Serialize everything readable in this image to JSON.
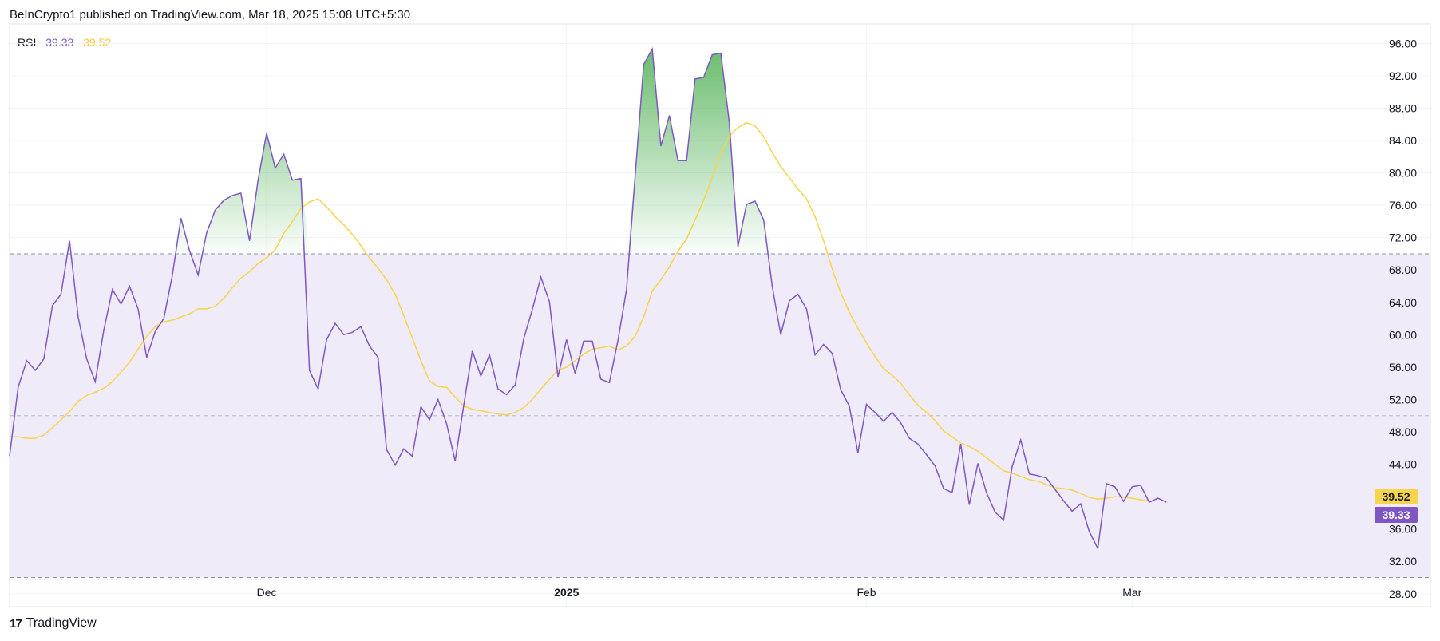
{
  "header": {
    "attribution": "BeInCrypto1 published on TradingView.com, Mar 18, 2025 15:08 UTC+5:30"
  },
  "legend": {
    "indicator": "RSI",
    "rsi_value": "39.33",
    "ma_value": "39.52"
  },
  "footer": {
    "brand": "TradingView",
    "logo_text": "17"
  },
  "colors": {
    "rsi_line": "#7e57c2",
    "ma_line": "#f7d44a",
    "band_fill": "#f0ebf8",
    "overbought_fill": "#4caf50",
    "ma_tag": "#f7d44a",
    "rsi_tag": "#7e57c2"
  },
  "chart_data": {
    "type": "line",
    "title": "",
    "ylim": [
      26.4,
      98.4
    ],
    "y_ticks": [
      "96.00",
      "92.00",
      "88.00",
      "84.00",
      "80.00",
      "76.00",
      "72.00",
      "68.00",
      "64.00",
      "60.00",
      "56.00",
      "52.00",
      "48.00",
      "44.00",
      "40.00",
      "36.00",
      "32.00",
      "28.00"
    ],
    "x_labels": [
      {
        "label": "Dec",
        "i": 30,
        "bold": false
      },
      {
        "label": "2025",
        "i": 65,
        "bold": true
      },
      {
        "label": "Feb",
        "i": 100,
        "bold": false
      },
      {
        "label": "Mar",
        "i": 131,
        "bold": false
      }
    ],
    "levels": {
      "upper": 70,
      "middle": 50,
      "lower": 30
    },
    "grid": true,
    "series": [
      {
        "name": "RSI",
        "values": [
          45,
          53.5,
          56.8,
          55.6,
          57,
          63.6,
          65,
          71.6,
          62.2,
          57,
          54.2,
          60.6,
          65.6,
          63.8,
          66,
          63.2,
          57.2,
          60.4,
          62,
          67.4,
          74.4,
          70.4,
          67.4,
          72.6,
          75.4,
          76.6,
          77.2,
          77.5,
          71.6,
          79.1,
          84.9,
          80.6,
          82.3,
          79.1,
          79.3,
          55.6,
          53.3,
          59.4,
          61.4,
          60,
          60.3,
          61,
          58.6,
          57.2,
          45.8,
          43.9,
          45.9,
          45,
          51.1,
          49.5,
          52,
          49,
          44.4,
          51.3,
          58,
          54.9,
          57.5,
          53.3,
          52.6,
          53.8,
          59.5,
          63.1,
          67.1,
          64.1,
          54.8,
          59.4,
          55.2,
          59.2,
          59.2,
          54.5,
          54.1,
          59.3,
          65.6,
          79.6,
          93.4,
          95.3,
          83.3,
          87.1,
          81.5,
          81.5,
          91.6,
          91.8,
          94.6,
          94.8,
          86.2,
          70.9,
          76.1,
          76.5,
          74.2,
          66,
          60,
          64.2,
          65,
          63.2,
          57.5,
          58.8,
          57.7,
          53.2,
          51.2,
          45.4,
          51.4,
          50.4,
          49.3,
          50.4,
          49.1,
          47.2,
          46.5,
          45.2,
          43.8,
          41,
          40.5,
          46.5,
          39,
          44.1,
          40.5,
          38.1,
          37.1,
          43.7,
          47,
          42.8,
          42.6,
          42.3,
          40.9,
          39.5,
          38.2,
          39.1,
          35.7,
          33.6,
          41.6,
          41.2,
          39.4,
          41.2,
          41.4,
          39.3,
          39.8,
          39.33
        ]
      },
      {
        "name": "RSI MA",
        "values": [
          47.4,
          47.4,
          47.2,
          47.2,
          47.6,
          48.5,
          49.5,
          50.5,
          51.8,
          52.5,
          52.9,
          53.4,
          54.2,
          55.4,
          56.6,
          58.2,
          59.8,
          61,
          61.6,
          61.8,
          62.2,
          62.6,
          63.2,
          63.2,
          63.5,
          64.5,
          65.8,
          67,
          67.8,
          68.8,
          69.5,
          70.5,
          72.5,
          74,
          75.6,
          76.4,
          76.8,
          75.8,
          74.6,
          73.6,
          72.4,
          71,
          69.5,
          68.2,
          66.8,
          65,
          62.4,
          59.6,
          56.8,
          54.3,
          53.6,
          53.5,
          52.3,
          51.2,
          50.8,
          50.6,
          50.4,
          50.2,
          50.1,
          50.4,
          51,
          52,
          53.3,
          54.5,
          55.6,
          56,
          56.8,
          57.6,
          58.2,
          58.4,
          58.6,
          58.1,
          58.6,
          59.8,
          62.2,
          65.4,
          66.8,
          68.4,
          70.3,
          71.8,
          74.2,
          76.6,
          79.4,
          82.4,
          84.6,
          85.6,
          86.2,
          85.8,
          84.5,
          82.5,
          80.8,
          79.4,
          78,
          76.8,
          74.6,
          71.6,
          68.1,
          65.2,
          62.8,
          60.8,
          59,
          57.3,
          55.8,
          55,
          54,
          52.6,
          51.3,
          50.4,
          49.4,
          48.1,
          47.4,
          46.6,
          46.2,
          45.6,
          44.8,
          44,
          43.2,
          42.9,
          42.5,
          42.1,
          41.9,
          41.5,
          41.1,
          41,
          40.8,
          40.4,
          39.9,
          39.7,
          39.8,
          40,
          39.9,
          39.8,
          39.6,
          39.52
        ]
      }
    ]
  }
}
